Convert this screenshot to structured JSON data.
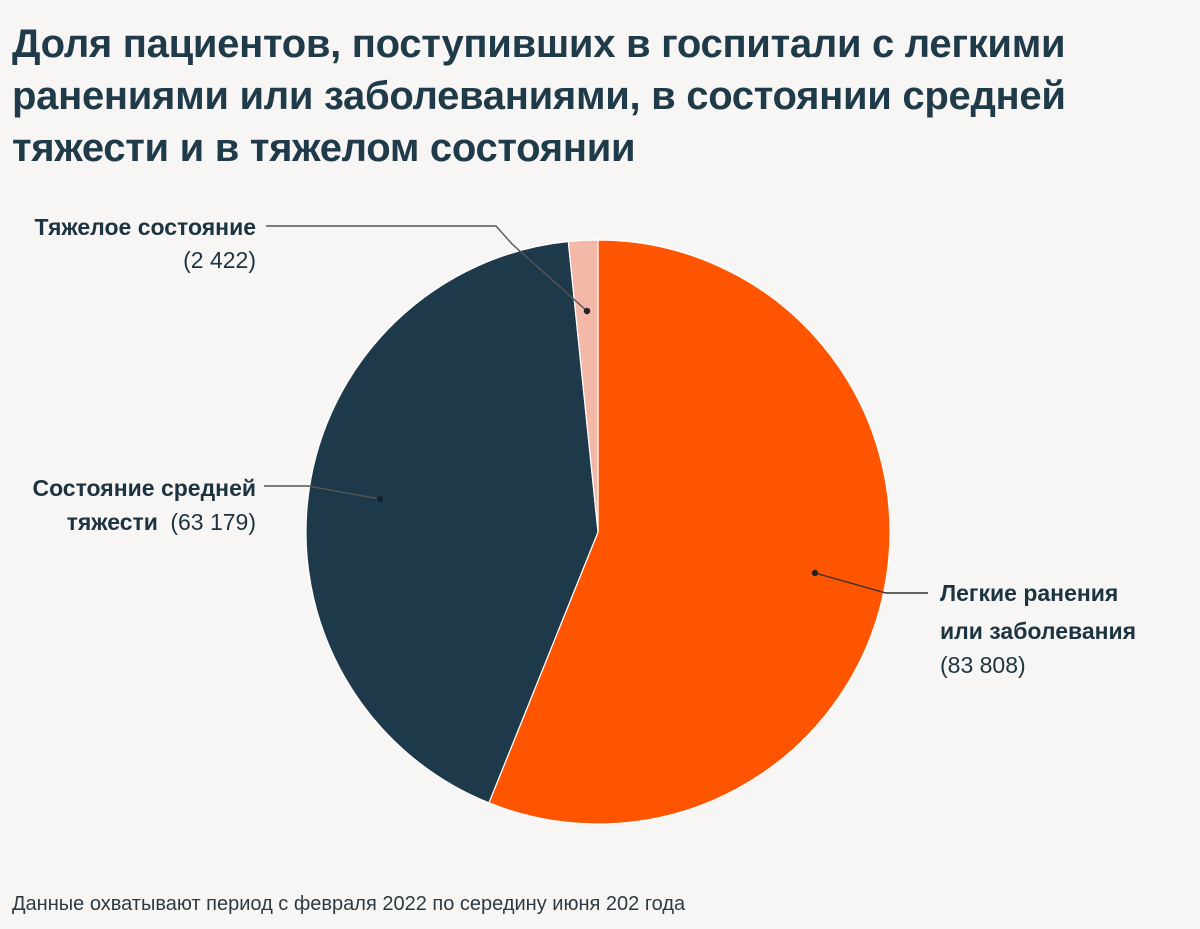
{
  "title": "Доля пациентов, поступивших в госпитали с легкими ранениями или заболеваниями, в состоянии средней тяжести и в тяжелом состоянии",
  "footnote": "Данные охватывают период с февраля 2022 по середину июня 202 года",
  "colors": {
    "light": "#ff5500",
    "medium": "#1e3a4a",
    "severe": "#f4b8a8",
    "leader": "#333333"
  },
  "chart_data": {
    "type": "pie",
    "title": "Доля пациентов, поступивших в госпитали с легкими ранениями или заболеваниями, в состоянии средней тяжести и в тяжелом состоянии",
    "start_angle_deg": 0,
    "direction": "clockwise",
    "slices": [
      {
        "key": "light",
        "name_lines": [
          "Легкие ранения",
          "или заболевания"
        ],
        "value": 83808,
        "value_label": "(83 808)"
      },
      {
        "key": "medium",
        "name_lines": [
          "Состояние средней",
          "тяжести"
        ],
        "value": 63179,
        "value_label": "(63 179)"
      },
      {
        "key": "severe",
        "name_lines": [
          "Тяжелое состояние"
        ],
        "value": 2422,
        "value_label": "(2 422)"
      }
    ]
  }
}
